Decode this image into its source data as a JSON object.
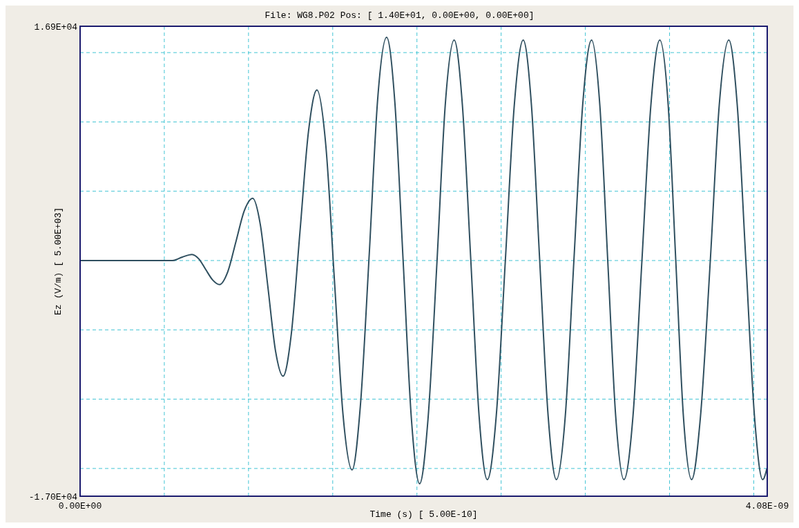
{
  "chart_data": {
    "type": "line",
    "title": "File: WG8.P02  Pos: [ 1.40E+01, 0.00E+00, 0.00E+00]",
    "xlabel": "Time (s)  [ 5.00E-10]",
    "ylabel": "Ez (V/m)  [ 5.00E+03]",
    "xlim": [
      0,
      4.08e-09
    ],
    "ylim": [
      -17000,
      16900
    ],
    "xticks": [
      {
        "value": 0,
        "label": "0.00E+00"
      },
      {
        "value": 5e-10,
        "label": null
      },
      {
        "value": 1e-09,
        "label": null
      },
      {
        "value": 1.5e-09,
        "label": null
      },
      {
        "value": 2e-09,
        "label": null
      },
      {
        "value": 2.5e-09,
        "label": null
      },
      {
        "value": 3e-09,
        "label": null
      },
      {
        "value": 3.5e-09,
        "label": null
      },
      {
        "value": 4e-09,
        "label": null
      },
      {
        "value": 4.08e-09,
        "label": "4.08E-09"
      }
    ],
    "yticks": [
      {
        "value": -17000,
        "label": "-1.70E+04"
      },
      {
        "value": -15000,
        "label": null
      },
      {
        "value": -10000,
        "label": null
      },
      {
        "value": -5000,
        "label": null
      },
      {
        "value": 0,
        "label": null
      },
      {
        "value": 5000,
        "label": null
      },
      {
        "value": 10000,
        "label": null
      },
      {
        "value": 15000,
        "label": null
      },
      {
        "value": 16900,
        "label": "1.69E+04"
      }
    ],
    "grid": true,
    "series": [
      {
        "color": "#2f4f5f",
        "x": [
          0,
          5.49e-10,
          6.07e-10,
          6.64e-10,
          7.05e-10,
          7.46e-10,
          7.87e-10,
          8.28e-10,
          8.77e-10,
          9.26e-10,
          9.75e-10,
          1.025e-09,
          1.07e-09,
          1.115e-09,
          1.16e-09,
          1.205e-09,
          1.254e-09,
          1.305e-09,
          1.356e-09,
          1.406e-09,
          1.459e-09,
          1.51e-09,
          1.561e-09,
          1.615e-09,
          1.664e-09,
          1.717e-09,
          1.766e-09,
          1.82e-09,
          1.869e-09,
          1.918e-09,
          1.967e-09,
          2.016e-09,
          2.066e-09,
          2.119e-09,
          2.168e-09,
          2.221e-09,
          2.27e-09,
          2.32e-09,
          2.369e-09,
          2.418e-09,
          2.471e-09,
          2.525e-09,
          2.578e-09,
          2.631e-09,
          2.68e-09,
          2.729e-09,
          2.779e-09,
          2.828e-09,
          2.881e-09,
          2.932e-09,
          2.984e-09,
          3.037e-09,
          3.086e-09,
          3.133e-09,
          3.18e-09,
          3.229e-09,
          3.283e-09,
          3.336e-09,
          3.389e-09,
          3.442e-09,
          3.492e-09,
          3.537e-09,
          3.582e-09,
          3.631e-09,
          3.684e-09,
          3.742e-09,
          3.795e-09,
          3.852e-09,
          3.902e-09,
          3.953e-09,
          4.004e-09,
          4.053e-09,
          4.078e-09
        ],
        "values": [
          0,
          0,
          250,
          440,
          120,
          -650,
          -1400,
          -1730,
          -800,
          1400,
          3600,
          4490,
          2600,
          -1900,
          -6500,
          -8340,
          -5300,
          2000,
          9300,
          12300,
          8300,
          -1400,
          -11100,
          -15100,
          -10500,
          500,
          11500,
          16100,
          11400,
          0,
          -11400,
          -16100,
          -11400,
          -100,
          11200,
          15900,
          11200,
          0,
          -11200,
          -15800,
          -11200,
          0,
          11200,
          15900,
          11200,
          0,
          -11200,
          -15800,
          -11200,
          0,
          11200,
          15900,
          11200,
          0,
          -11200,
          -15800,
          -11200,
          0,
          11200,
          15900,
          11200,
          0,
          -11200,
          -15800,
          -11200,
          0,
          11200,
          15900,
          11200,
          0,
          -11200,
          -15800,
          -15000
        ]
      }
    ]
  }
}
